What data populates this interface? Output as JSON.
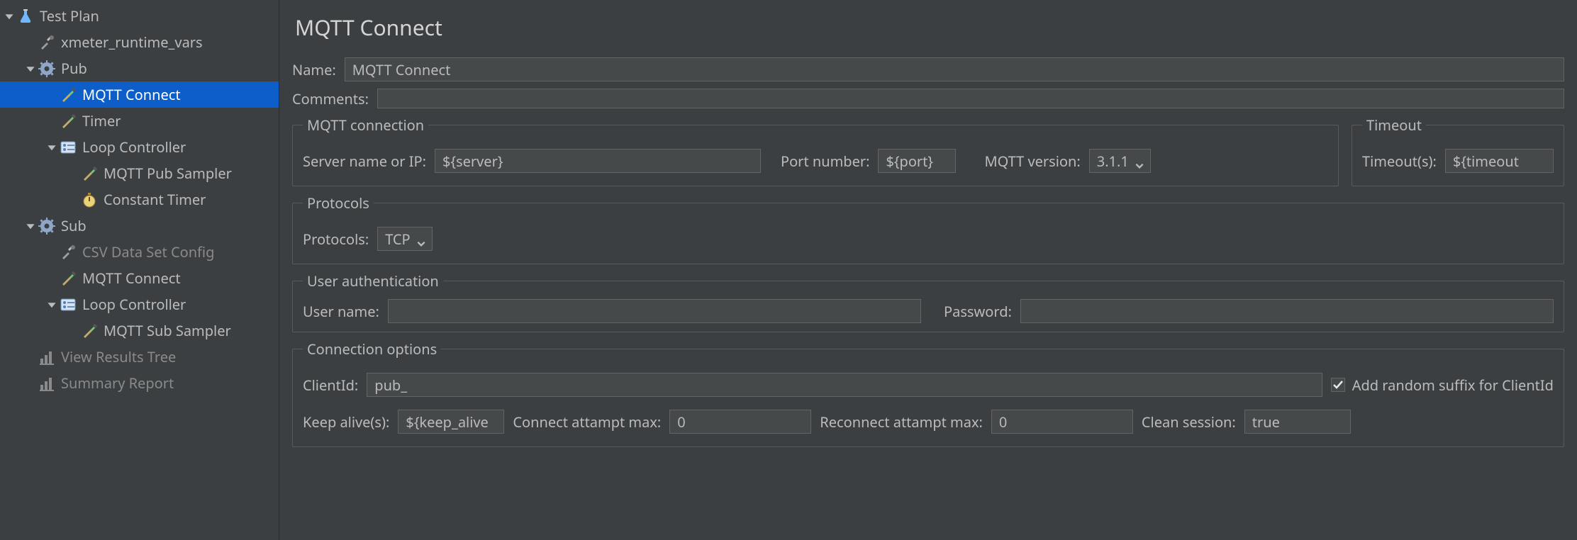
{
  "colors": {
    "background": "#3c3f41",
    "input_background": "#45494a",
    "input_border": "#646464",
    "text": "#bbbbbb",
    "text_dim": "#8a8a8a",
    "selection": "#0d5ec8",
    "selection_text": "#ffffff",
    "fieldset_border": "#5a5a5a",
    "title_text": "#d4d4d4"
  },
  "tree": {
    "items": [
      {
        "id": "test-plan",
        "label": "Test Plan",
        "depth": 0,
        "toggle": "down",
        "icon": "flask-icon",
        "selected": false,
        "dim": false,
        "interactable": true
      },
      {
        "id": "runtime-vars",
        "label": "xmeter_runtime_vars",
        "depth": 1,
        "toggle": "none",
        "icon": "tools-icon",
        "selected": false,
        "dim": false,
        "interactable": true
      },
      {
        "id": "pub-group",
        "label": "Pub",
        "depth": 1,
        "toggle": "down",
        "icon": "gear-icon",
        "selected": false,
        "dim": false,
        "interactable": true
      },
      {
        "id": "mqtt-connect-1",
        "label": "MQTT Connect",
        "depth": 2,
        "toggle": "none",
        "icon": "dropper-icon",
        "selected": true,
        "dim": false,
        "interactable": true
      },
      {
        "id": "timer",
        "label": "Timer",
        "depth": 2,
        "toggle": "none",
        "icon": "dropper-icon",
        "selected": false,
        "dim": false,
        "interactable": true
      },
      {
        "id": "loop-1",
        "label": "Loop Controller",
        "depth": 2,
        "toggle": "down",
        "icon": "loop-icon",
        "selected": false,
        "dim": false,
        "interactable": true
      },
      {
        "id": "pub-sampler",
        "label": "MQTT Pub Sampler",
        "depth": 3,
        "toggle": "none",
        "icon": "dropper-icon",
        "selected": false,
        "dim": false,
        "interactable": true
      },
      {
        "id": "const-timer",
        "label": "Constant Timer",
        "depth": 3,
        "toggle": "none",
        "icon": "stopwatch-icon",
        "selected": false,
        "dim": false,
        "interactable": true
      },
      {
        "id": "sub-group",
        "label": "Sub",
        "depth": 1,
        "toggle": "down",
        "icon": "gear-icon",
        "selected": false,
        "dim": false,
        "interactable": true
      },
      {
        "id": "csv-config",
        "label": "CSV Data Set Config",
        "depth": 2,
        "toggle": "none",
        "icon": "tools-icon",
        "selected": false,
        "dim": true,
        "interactable": true
      },
      {
        "id": "mqtt-connect-2",
        "label": "MQTT Connect",
        "depth": 2,
        "toggle": "none",
        "icon": "dropper-icon",
        "selected": false,
        "dim": false,
        "interactable": true
      },
      {
        "id": "loop-2",
        "label": "Loop Controller",
        "depth": 2,
        "toggle": "down",
        "icon": "loop-icon",
        "selected": false,
        "dim": false,
        "interactable": true
      },
      {
        "id": "sub-sampler",
        "label": "MQTT Sub Sampler",
        "depth": 3,
        "toggle": "none",
        "icon": "dropper-icon",
        "selected": false,
        "dim": false,
        "interactable": true
      },
      {
        "id": "view-results",
        "label": "View Results Tree",
        "depth": 1,
        "toggle": "none",
        "icon": "chart-icon",
        "selected": false,
        "dim": true,
        "interactable": true
      },
      {
        "id": "summary-report",
        "label": "Summary Report",
        "depth": 1,
        "toggle": "none",
        "icon": "chart-icon",
        "selected": false,
        "dim": true,
        "interactable": true
      }
    ]
  },
  "panel": {
    "title": "MQTT Connect",
    "name_label": "Name:",
    "name_value": "MQTT Connect",
    "comments_label": "Comments:",
    "comments_value": "",
    "conn_legend": "MQTT connection",
    "server_label": "Server name or IP:",
    "server_value": "${server}",
    "port_label": "Port number:",
    "port_value": "${port}",
    "version_label": "MQTT version:",
    "version_value": "3.1.1",
    "timeout_legend": "Timeout",
    "timeout_label": "Timeout(s):",
    "timeout_value": "${timeout",
    "protocols_legend": "Protocols",
    "protocols_label": "Protocols:",
    "protocols_value": "TCP",
    "auth_legend": "User authentication",
    "user_label": "User name:",
    "user_value": "",
    "pass_label": "Password:",
    "pass_value": "",
    "connopts_legend": "Connection options",
    "clientid_label": "ClientId:",
    "clientid_value": "pub_",
    "suffix_checkbox_label": "Add random suffix for ClientId",
    "suffix_checked": true,
    "keepalive_label": "Keep alive(s):",
    "keepalive_value": "${keep_alive",
    "conn_attempt_label": "Connect attampt max:",
    "conn_attempt_value": "0",
    "reconn_attempt_label": "Reconnect attampt max:",
    "reconn_attempt_value": "0",
    "clean_session_label": "Clean session:",
    "clean_session_value": "true"
  }
}
